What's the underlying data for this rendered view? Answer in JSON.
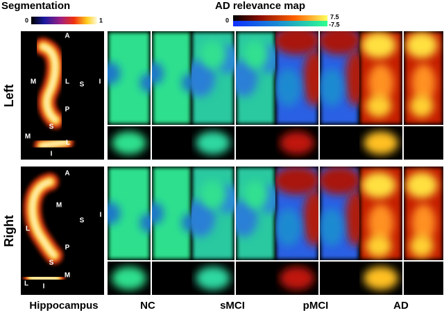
{
  "header": {
    "segmentation": "Segmentation",
    "seg_min": "0",
    "seg_max": "1",
    "relevance": "AD relevance map",
    "rel_zero": "0",
    "rel_max": "7.5",
    "rel_min": "-7.5"
  },
  "rows": [
    {
      "label": "Left",
      "anatomy": [
        "A",
        "M",
        "L",
        "S",
        "I",
        "P",
        "S",
        "M",
        "L",
        "I"
      ]
    },
    {
      "label": "Right",
      "anatomy": [
        "A",
        "M",
        "L",
        "S",
        "I",
        "P",
        "S",
        "M",
        "L",
        "I"
      ]
    }
  ],
  "columns": [
    "Hippocampus",
    "NC",
    "sMCI",
    "pMCI",
    "AD"
  ]
}
